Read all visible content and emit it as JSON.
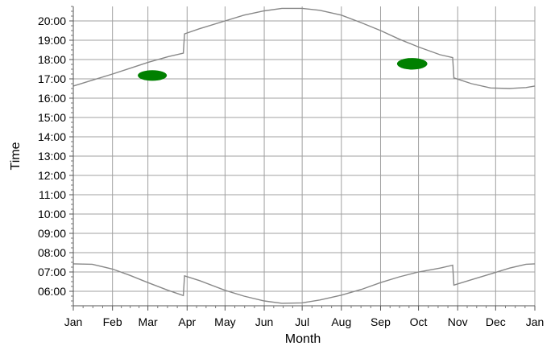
{
  "chart_data": {
    "type": "line",
    "title": "",
    "xlabel": "Month",
    "ylabel": "Time",
    "x_unit": "day of year",
    "y_unit": "hour of day",
    "xlim": [
      0,
      365
    ],
    "ylim": [
      5.25,
      20.75
    ],
    "grid": true,
    "legend": "none",
    "x_ticks": [
      {
        "day": 0,
        "label": "Jan"
      },
      {
        "day": 31,
        "label": "Feb"
      },
      {
        "day": 59,
        "label": "Mar"
      },
      {
        "day": 90,
        "label": "Apr"
      },
      {
        "day": 120,
        "label": "May"
      },
      {
        "day": 151,
        "label": "Jun"
      },
      {
        "day": 181,
        "label": "Jul"
      },
      {
        "day": 212,
        "label": "Aug"
      },
      {
        "day": 243,
        "label": "Sep"
      },
      {
        "day": 273,
        "label": "Oct"
      },
      {
        "day": 304,
        "label": "Nov"
      },
      {
        "day": 334,
        "label": "Dec"
      },
      {
        "day": 365,
        "label": "Jan"
      }
    ],
    "y_ticks": [
      {
        "hour": 6,
        "label": "06:00"
      },
      {
        "hour": 7,
        "label": "07:00"
      },
      {
        "hour": 8,
        "label": "08:00"
      },
      {
        "hour": 9,
        "label": "09:00"
      },
      {
        "hour": 10,
        "label": "10:00"
      },
      {
        "hour": 11,
        "label": "11:00"
      },
      {
        "hour": 12,
        "label": "12:00"
      },
      {
        "hour": 13,
        "label": "13:00"
      },
      {
        "hour": 14,
        "label": "14:00"
      },
      {
        "hour": 15,
        "label": "15:00"
      },
      {
        "hour": 16,
        "label": "16:00"
      },
      {
        "hour": 17,
        "label": "17:00"
      },
      {
        "hour": 18,
        "label": "18:00"
      },
      {
        "hour": 19,
        "label": "19:00"
      },
      {
        "hour": 20,
        "label": "20:00"
      }
    ],
    "series": [
      {
        "color": "#888888",
        "points": [
          [
            0,
            16.63
          ],
          [
            15,
            16.93
          ],
          [
            31,
            17.25
          ],
          [
            45,
            17.55
          ],
          [
            59,
            17.85
          ],
          [
            75,
            18.15
          ],
          [
            87,
            18.33
          ],
          [
            88,
            19.33
          ],
          [
            100,
            19.6
          ],
          [
            120,
            20.0
          ],
          [
            135,
            20.3
          ],
          [
            151,
            20.52
          ],
          [
            165,
            20.65
          ],
          [
            181,
            20.65
          ],
          [
            195,
            20.55
          ],
          [
            212,
            20.3
          ],
          [
            228,
            19.9
          ],
          [
            243,
            19.5
          ],
          [
            258,
            19.05
          ],
          [
            273,
            18.65
          ],
          [
            290,
            18.25
          ],
          [
            300,
            18.1
          ],
          [
            301,
            17.05
          ],
          [
            315,
            16.75
          ],
          [
            330,
            16.53
          ],
          [
            345,
            16.5
          ],
          [
            358,
            16.55
          ],
          [
            365,
            16.63
          ]
        ]
      },
      {
        "color": "#888888",
        "points": [
          [
            0,
            7.42
          ],
          [
            15,
            7.4
          ],
          [
            31,
            7.15
          ],
          [
            45,
            6.82
          ],
          [
            59,
            6.45
          ],
          [
            75,
            6.05
          ],
          [
            87,
            5.78
          ],
          [
            88,
            6.8
          ],
          [
            100,
            6.55
          ],
          [
            120,
            6.05
          ],
          [
            135,
            5.75
          ],
          [
            151,
            5.5
          ],
          [
            165,
            5.38
          ],
          [
            181,
            5.4
          ],
          [
            195,
            5.55
          ],
          [
            212,
            5.8
          ],
          [
            228,
            6.1
          ],
          [
            243,
            6.45
          ],
          [
            258,
            6.75
          ],
          [
            273,
            7.0
          ],
          [
            290,
            7.2
          ],
          [
            300,
            7.35
          ],
          [
            301,
            6.32
          ],
          [
            315,
            6.6
          ],
          [
            330,
            6.9
          ],
          [
            345,
            7.2
          ],
          [
            358,
            7.4
          ],
          [
            365,
            7.42
          ]
        ]
      }
    ],
    "highlights": [
      {
        "color": "#008000",
        "x": [
          51,
          74
        ],
        "y": [
          16.9,
          17.45
        ]
      },
      {
        "color": "#008000",
        "x": [
          256,
          280
        ],
        "y": [
          17.48,
          18.08
        ]
      }
    ]
  }
}
